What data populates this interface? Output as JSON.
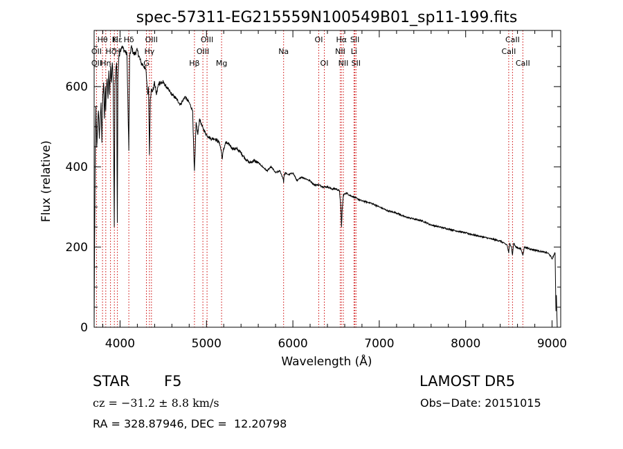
{
  "chart_data": {
    "type": "line",
    "title": "spec-57311-EG215559N100549B01_sp11-199.fits",
    "xlabel": "Wavelength (Å)",
    "ylabel": "Flux (relative)",
    "xlim": [
      3700,
      9100
    ],
    "ylim": [
      0,
      740
    ],
    "x_ticks": [
      4000,
      5000,
      6000,
      7000,
      8000,
      9000
    ],
    "y_ticks": [
      0,
      200,
      400,
      600
    ],
    "grid": false,
    "legend": "none",
    "series": [
      {
        "x": [
          3700,
          3705,
          3712,
          3720,
          3730,
          3740,
          3750,
          3760,
          3770,
          3780,
          3790,
          3800,
          3810,
          3820,
          3830,
          3835,
          3840,
          3850,
          3860,
          3870,
          3880,
          3890,
          3900,
          3910,
          3920,
          3933,
          3940,
          3950,
          3960,
          3968,
          3975,
          3985,
          4000,
          4020,
          4050,
          4080,
          4101,
          4110,
          4130,
          4160,
          4200,
          4240,
          4280,
          4300,
          4320,
          4330,
          4340,
          4350,
          4360,
          4380,
          4400,
          4420,
          4450,
          4500,
          4550,
          4600,
          4650,
          4700,
          4750,
          4800,
          4840,
          4855,
          4861,
          4868,
          4880,
          4900,
          4920,
          4950,
          5000,
          5050,
          5100,
          5150,
          5170,
          5183,
          5195,
          5220,
          5270,
          5300,
          5350,
          5400,
          5450,
          5500,
          5550,
          5600,
          5650,
          5700,
          5750,
          5800,
          5850,
          5889,
          5893,
          5897,
          5910,
          5950,
          6000,
          6050,
          6100,
          6150,
          6200,
          6250,
          6300,
          6350,
          6400,
          6450,
          6500,
          6540,
          6555,
          6563,
          6570,
          6585,
          6620,
          6650,
          6700,
          6750,
          6800,
          6900,
          7000,
          7100,
          7200,
          7300,
          7400,
          7500,
          7600,
          7700,
          7800,
          7900,
          8000,
          8100,
          8200,
          8300,
          8400,
          8480,
          8498,
          8510,
          8530,
          8542,
          8555,
          8580,
          8640,
          8662,
          8680,
          8750,
          8850,
          8950,
          8975,
          9000,
          9020,
          9035,
          9045,
          9050,
          9060
        ],
        "y": [
          0,
          200,
          420,
          550,
          450,
          500,
          540,
          470,
          520,
          560,
          460,
          580,
          610,
          520,
          600,
          540,
          590,
          620,
          570,
          640,
          580,
          650,
          610,
          660,
          620,
          250,
          600,
          640,
          660,
          260,
          620,
          670,
          690,
          700,
          690,
          680,
          440,
          670,
          700,
          680,
          690,
          660,
          650,
          640,
          580,
          600,
          430,
          570,
          590,
          590,
          610,
          580,
          610,
          610,
          595,
          580,
          570,
          555,
          575,
          560,
          540,
          420,
          390,
          430,
          510,
          480,
          520,
          500,
          480,
          470,
          470,
          460,
          440,
          420,
          440,
          460,
          455,
          445,
          445,
          435,
          420,
          410,
          415,
          410,
          400,
          390,
          400,
          385,
          390,
          370,
          360,
          375,
          385,
          380,
          385,
          365,
          375,
          370,
          365,
          355,
          355,
          350,
          350,
          345,
          345,
          340,
          300,
          250,
          290,
          330,
          335,
          330,
          325,
          320,
          315,
          310,
          300,
          290,
          285,
          275,
          270,
          265,
          255,
          250,
          245,
          240,
          235,
          230,
          225,
          220,
          215,
          205,
          185,
          210,
          200,
          180,
          210,
          200,
          195,
          180,
          200,
          195,
          190,
          185,
          180,
          170,
          180,
          185,
          40,
          80,
          0
        ]
      }
    ],
    "annotations": [
      {
        "label": "Hδ",
        "x": 4101,
        "row": 1
      },
      {
        "label": "Hε",
        "x": 3970,
        "row": 1
      },
      {
        "label": "Hβ",
        "x": 4861,
        "row": 3
      },
      {
        "label": "Hγ",
        "x": 4340,
        "row": 2
      },
      {
        "label": "Hη",
        "x": 3835,
        "row": 3
      },
      {
        "label": "Hθ",
        "x": 3797,
        "row": 1
      },
      {
        "label": "Hζ",
        "x": 3889,
        "row": 2
      },
      {
        "label": "Hα",
        "x": 6563,
        "row": 1
      },
      {
        "label": "K",
        "x": 3934,
        "row": 1
      },
      {
        "label": "H",
        "x": 3969,
        "row": 2
      },
      {
        "label": "G",
        "x": 4305,
        "row": 3
      },
      {
        "label": "OII",
        "x": 3727,
        "row": 2
      },
      {
        "label": "OII",
        "x": 3727,
        "row": 3
      },
      {
        "label": "OIII",
        "x": 4363,
        "row": 1
      },
      {
        "label": "OIII",
        "x": 4959,
        "row": 2
      },
      {
        "label": "OIII",
        "x": 5007,
        "row": 1
      },
      {
        "label": "Mg",
        "x": 5175,
        "row": 3
      },
      {
        "label": "Na",
        "x": 5893,
        "row": 2
      },
      {
        "label": "OI",
        "x": 6300,
        "row": 1
      },
      {
        "label": "OI",
        "x": 6364,
        "row": 3
      },
      {
        "label": "NII",
        "x": 6548,
        "row": 2
      },
      {
        "label": "NII",
        "x": 6584,
        "row": 3
      },
      {
        "label": "SII",
        "x": 6717,
        "row": 1
      },
      {
        "label": "SII",
        "x": 6731,
        "row": 3
      },
      {
        "label": "Li",
        "x": 6708,
        "row": 2
      },
      {
        "label": "CaII",
        "x": 8498,
        "row": 2
      },
      {
        "label": "CaII",
        "x": 8542,
        "row": 1
      },
      {
        "label": "CaII",
        "x": 8662,
        "row": 3
      }
    ],
    "marker_lines": [
      3727,
      3797,
      3835,
      3889,
      3934,
      3969,
      4101,
      4305,
      4340,
      4363,
      4861,
      4959,
      5007,
      5175,
      5893,
      6300,
      6364,
      6548,
      6563,
      6584,
      6708,
      6717,
      6731,
      8498,
      8542,
      8662
    ]
  },
  "info": {
    "class": "STAR",
    "subclass": "F5",
    "survey": "LAMOST DR5",
    "redshift": "cz = −31.2 ± 8.8 km/s",
    "obs_date": "Obs−Date: 20151015",
    "coords": "RA = 328.87946, DEC =  12.20798"
  },
  "colors": {
    "line": "#000000",
    "marker": "#cc0000"
  }
}
